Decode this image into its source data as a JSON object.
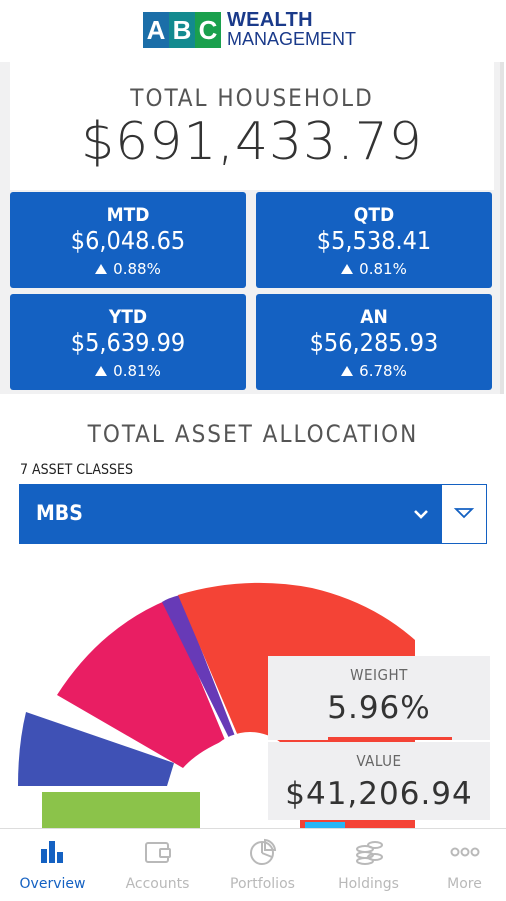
{
  "brand": {
    "letters": [
      "A",
      "B",
      "C"
    ],
    "letter_colors": [
      "#1b6ea8",
      "#138a8f",
      "#1aa04d"
    ],
    "line1": "WEALTH",
    "line2": "MANAGEMENT"
  },
  "household": {
    "label": "TOTAL HOUSEHOLD",
    "value": "$691,433.79"
  },
  "tiles": [
    {
      "label": "MTD",
      "value": "$6,048.65",
      "pct": "0.88%",
      "trend": "up"
    },
    {
      "label": "QTD",
      "value": "$5,538.41",
      "pct": "0.81%",
      "trend": "up"
    },
    {
      "label": "YTD",
      "value": "$5,639.99",
      "pct": "0.81%",
      "trend": "up"
    },
    {
      "label": "AN",
      "value": "$56,285.93",
      "pct": "6.78%",
      "trend": "up"
    }
  ],
  "allocation": {
    "title": "TOTAL ASSET ALLOCATION",
    "classes_label": "7 ASSET CLASSES",
    "selected": "MBS",
    "weight_label": "WEIGHT",
    "weight_value": "5.96%",
    "value_label": "VALUE",
    "value_value": "$41,206.94",
    "segment_colors": [
      "#8bc34a",
      "#3f51b5",
      "#e91e63",
      "#673ab7",
      "#f44336"
    ]
  },
  "colors": {
    "accent": "#1461c2",
    "nav_inactive": "#b9b9b9"
  },
  "nav": [
    {
      "label": "Overview",
      "icon": "bar-chart-icon",
      "active": true
    },
    {
      "label": "Accounts",
      "icon": "wallet-icon",
      "active": false
    },
    {
      "label": "Portfolios",
      "icon": "pie-chart-icon",
      "active": false
    },
    {
      "label": "Holdings",
      "icon": "coins-icon",
      "active": false
    },
    {
      "label": "More",
      "icon": "more-dots-icon",
      "active": false
    }
  ]
}
